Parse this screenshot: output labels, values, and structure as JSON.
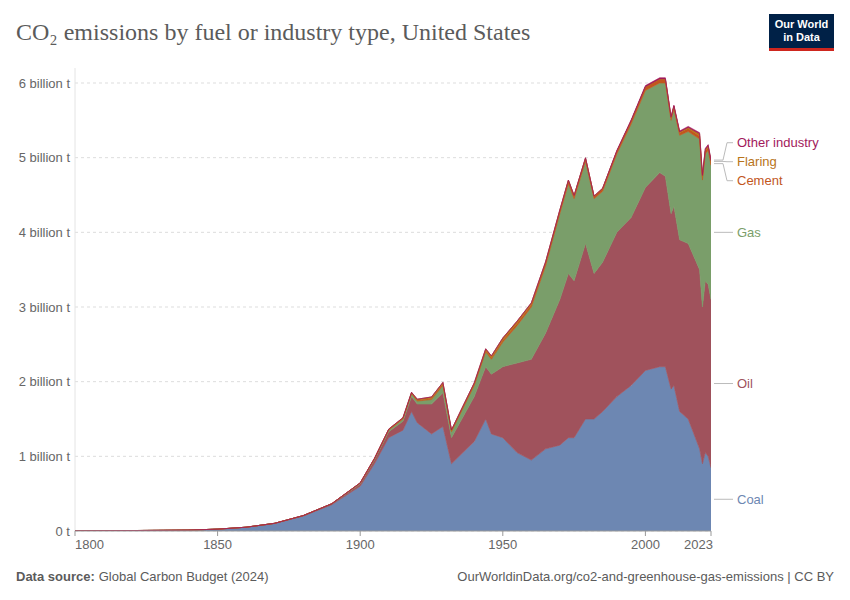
{
  "chart_data": {
    "type": "area",
    "title": "CO₂ emissions by fuel or industry type, United States",
    "logo": [
      "Our World",
      "in Data"
    ],
    "source_label": "Data source:",
    "source": "Global Carbon Budget (2024)",
    "url": "OurWorldinData.org/co2-and-greenhouse-gas-emissions | CC BY",
    "stacked": true,
    "grid": true,
    "legend": "right",
    "x": [
      1800,
      1820,
      1840,
      1850,
      1860,
      1870,
      1880,
      1890,
      1900,
      1905,
      1910,
      1915,
      1918,
      1920,
      1925,
      1929,
      1932,
      1940,
      1944,
      1946,
      1950,
      1955,
      1960,
      1965,
      1970,
      1973,
      1975,
      1979,
      1982,
      1985,
      1990,
      1995,
      2000,
      2005,
      2007,
      2009,
      2010,
      2012,
      2015,
      2019,
      2020,
      2021,
      2022,
      2023
    ],
    "xlim": [
      1800,
      2023
    ],
    "xticks": [
      1800,
      1850,
      1900,
      1950,
      2000,
      2023
    ],
    "ylim": [
      0,
      6.2
    ],
    "yticks": [
      {
        "value": 0,
        "label": "0 t"
      },
      {
        "value": 1,
        "label": "1 billion t"
      },
      {
        "value": 2,
        "label": "2 billion t"
      },
      {
        "value": 3,
        "label": "3 billion t"
      },
      {
        "value": 4,
        "label": "4 billion t"
      },
      {
        "value": 5,
        "label": "5 billion t"
      },
      {
        "value": 6,
        "label": "6 billion t"
      }
    ],
    "series": [
      {
        "name": "Coal",
        "color": "#6d87b2",
        "values": [
          0.003,
          0.006,
          0.012,
          0.025,
          0.05,
          0.1,
          0.2,
          0.35,
          0.6,
          0.9,
          1.25,
          1.35,
          1.6,
          1.45,
          1.3,
          1.4,
          0.9,
          1.2,
          1.5,
          1.3,
          1.25,
          1.05,
          0.95,
          1.1,
          1.15,
          1.25,
          1.25,
          1.5,
          1.5,
          1.6,
          1.8,
          1.95,
          2.15,
          2.2,
          2.2,
          1.9,
          1.95,
          1.6,
          1.5,
          1.1,
          0.9,
          1.05,
          1.0,
          0.85
        ]
      },
      {
        "name": "Oil",
        "color": "#a0525c",
        "values": [
          0,
          0,
          0,
          0,
          0.001,
          0.003,
          0.006,
          0.01,
          0.03,
          0.05,
          0.08,
          0.12,
          0.2,
          0.25,
          0.4,
          0.45,
          0.35,
          0.6,
          0.7,
          0.8,
          0.95,
          1.2,
          1.35,
          1.55,
          1.95,
          2.2,
          2.1,
          2.35,
          1.95,
          2.0,
          2.2,
          2.25,
          2.45,
          2.6,
          2.55,
          2.35,
          2.4,
          2.3,
          2.35,
          2.4,
          2.1,
          2.3,
          2.3,
          2.25
        ]
      },
      {
        "name": "Gas",
        "color": "#7a9e6a",
        "values": [
          0,
          0,
          0,
          0,
          0,
          0,
          0,
          0.005,
          0.01,
          0.015,
          0.02,
          0.03,
          0.04,
          0.04,
          0.06,
          0.1,
          0.08,
          0.15,
          0.2,
          0.2,
          0.33,
          0.5,
          0.7,
          0.9,
          1.15,
          1.2,
          1.1,
          1.1,
          1.0,
          0.95,
          1.05,
          1.25,
          1.3,
          1.2,
          1.25,
          1.25,
          1.3,
          1.4,
          1.5,
          1.75,
          1.7,
          1.7,
          1.8,
          1.8
        ]
      },
      {
        "name": "Cement",
        "color": "#c2561d",
        "values": [
          0,
          0,
          0,
          0,
          0,
          0,
          0,
          0,
          0.003,
          0.005,
          0.01,
          0.01,
          0.008,
          0.01,
          0.015,
          0.02,
          0.01,
          0.015,
          0.015,
          0.02,
          0.025,
          0.03,
          0.03,
          0.035,
          0.035,
          0.04,
          0.035,
          0.04,
          0.03,
          0.035,
          0.035,
          0.04,
          0.045,
          0.05,
          0.05,
          0.035,
          0.035,
          0.035,
          0.04,
          0.04,
          0.04,
          0.04,
          0.04,
          0.04
        ]
      },
      {
        "name": "Flaring",
        "color": "#b8741a",
        "values": [
          0,
          0,
          0,
          0,
          0,
          0,
          0,
          0,
          0.002,
          0.003,
          0.005,
          0.008,
          0.01,
          0.015,
          0.02,
          0.02,
          0.015,
          0.02,
          0.025,
          0.025,
          0.03,
          0.03,
          0.025,
          0.02,
          0.015,
          0.01,
          0.01,
          0.008,
          0.005,
          0.005,
          0.005,
          0.005,
          0.005,
          0.005,
          0.005,
          0.006,
          0.007,
          0.01,
          0.015,
          0.03,
          0.02,
          0.02,
          0.02,
          0.02
        ]
      },
      {
        "name": "Other industry",
        "color": "#a2195b",
        "values": [
          0,
          0,
          0,
          0,
          0,
          0,
          0,
          0,
          0,
          0,
          0,
          0,
          0,
          0,
          0,
          0,
          0,
          0,
          0,
          0,
          0,
          0,
          0,
          0,
          0,
          0,
          0,
          0,
          0,
          0,
          0.01,
          0.012,
          0.015,
          0.015,
          0.015,
          0.012,
          0.013,
          0.013,
          0.014,
          0.015,
          0.014,
          0.015,
          0.015,
          0.015
        ]
      }
    ]
  }
}
